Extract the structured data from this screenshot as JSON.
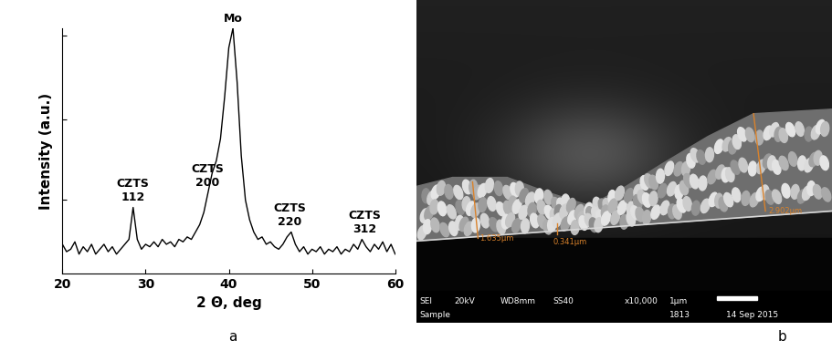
{
  "chart_data": {
    "type": "line",
    "x_label": "2 Θ, deg",
    "y_label": "Intensity (a.u.)",
    "x": [
      20,
      20.5,
      21,
      21.5,
      22,
      22.5,
      23,
      23.5,
      24,
      24.5,
      25,
      25.5,
      26,
      26.5,
      27,
      27.5,
      28,
      28.5,
      29,
      29.5,
      30,
      30.5,
      31,
      31.5,
      32,
      32.5,
      33,
      33.5,
      34,
      34.5,
      35,
      35.5,
      36,
      36.5,
      37,
      37.5,
      38,
      38.5,
      39,
      39.5,
      40,
      40.5,
      41,
      41.5,
      42,
      42.5,
      43,
      43.5,
      44,
      44.5,
      45,
      45.5,
      46,
      46.5,
      47,
      47.5,
      48,
      48.5,
      49,
      49.5,
      50,
      50.5,
      51,
      51.5,
      52,
      52.5,
      53,
      53.5,
      54,
      54.5,
      55,
      55.5,
      56,
      56.5,
      57,
      57.5,
      58,
      58.5,
      59,
      59.5,
      60
    ],
    "values": [
      12,
      9,
      10,
      13,
      8,
      11,
      9,
      12,
      8,
      10,
      12,
      9,
      11,
      8,
      10,
      12,
      14,
      27,
      14,
      10,
      12,
      11,
      13,
      11,
      14,
      12,
      13,
      11,
      14,
      13,
      15,
      14,
      17,
      20,
      25,
      33,
      41,
      46,
      55,
      72,
      92,
      100,
      78,
      48,
      30,
      22,
      17,
      14,
      15,
      12,
      13,
      11,
      10,
      12,
      15,
      17,
      12,
      9,
      11,
      8,
      10,
      9,
      11,
      8,
      10,
      9,
      11,
      8,
      10,
      9,
      12,
      10,
      14,
      11,
      9,
      12,
      10,
      13,
      9,
      12,
      8
    ],
    "color": "#000000",
    "xlim": [
      20,
      60
    ],
    "xticks": [
      20,
      30,
      40,
      50,
      60
    ],
    "ylim": [
      0,
      100
    ],
    "yticks": [
      30,
      63,
      97
    ],
    "tick_labels": "x",
    "annotations": [
      {
        "text": "CZTS\n112",
        "x": 28.5
      },
      {
        "text": "CZTS\n200",
        "x": 37.4
      },
      {
        "text": "Mo",
        "x": 40.5
      },
      {
        "text": "CZTS\n220",
        "x": 47.3
      },
      {
        "text": "CZTS\n312",
        "x": 56.3
      }
    ]
  },
  "panel_labels": [
    "a",
    "b"
  ],
  "sem_image": {
    "measurements": [
      "1.635μm",
      "0.341μm",
      "2.902μm"
    ],
    "info_top": [
      "SEI",
      "20kV",
      "WD8mm",
      "SS40",
      "x10,000",
      "1μm"
    ],
    "info_bottom": [
      "Sample",
      "1813",
      "14 Sep 2015"
    ]
  }
}
